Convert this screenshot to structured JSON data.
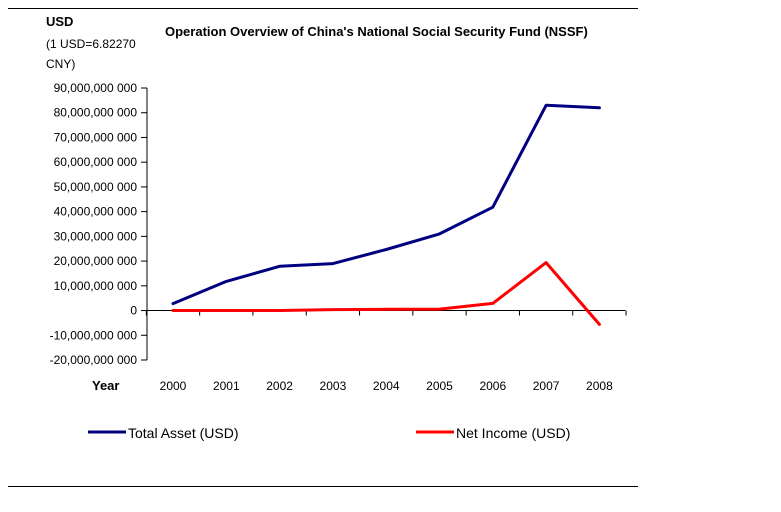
{
  "chart_data": {
    "type": "line",
    "title": "Operation Overview of China's National Social Security Fund (NSSF)",
    "ylabel": "USD",
    "ylabel_note": [
      "(1 USD=6.82270",
      "CNY)"
    ],
    "xlabel": "Year",
    "x": [
      "2000",
      "2001",
      "2002",
      "2003",
      "2004",
      "2005",
      "2006",
      "2007",
      "2008"
    ],
    "ylim": [
      -20000000000,
      90000000000
    ],
    "yticks": [
      90000000000,
      80000000000,
      70000000000,
      60000000000,
      50000000000,
      40000000000,
      30000000000,
      20000000000,
      10000000000,
      0,
      -10000000000,
      -20000000000
    ],
    "ytick_labels": [
      "90,000,000 000",
      "80,000,000 000",
      "70,000,000 000",
      "60,000,000 000",
      "50,000,000 000",
      "40,000,000 000",
      "30,000,000 000",
      "20,000,000 000",
      "10,000,000 000",
      "0",
      "-10,000,000 000",
      "-20,000,000 000"
    ],
    "series": [
      {
        "name": "Total Asset (USD)",
        "color": "#000080",
        "values": [
          2800000000,
          11800000000,
          17900000000,
          19000000000,
          24700000000,
          31000000000,
          41800000000,
          83000000000,
          82000000000
        ]
      },
      {
        "name": "Net Income (USD)",
        "color": "#ff0000",
        "values": [
          0,
          0,
          0,
          400000000,
          500000000,
          600000000,
          2900000000,
          19400000000,
          -5600000000
        ]
      }
    ],
    "grid": false,
    "legend_position": "bottom"
  }
}
